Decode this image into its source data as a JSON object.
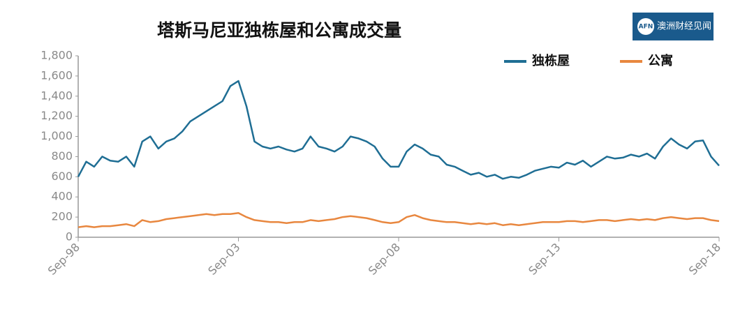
{
  "logo": {
    "mark": "AFN",
    "text": "澳洲财经见闻"
  },
  "chart_data": {
    "type": "line",
    "title": "塔斯马尼亚独栋屋和公寓成交量",
    "categories": [
      "Sep-98",
      null,
      null,
      null,
      null,
      null,
      null,
      null,
      null,
      null,
      null,
      null,
      null,
      null,
      null,
      null,
      null,
      null,
      null,
      null,
      "Sep-03",
      null,
      null,
      null,
      null,
      null,
      null,
      null,
      null,
      null,
      null,
      null,
      null,
      null,
      null,
      null,
      null,
      null,
      null,
      null,
      "Sep-08",
      null,
      null,
      null,
      null,
      null,
      null,
      null,
      null,
      null,
      null,
      null,
      null,
      null,
      null,
      null,
      null,
      null,
      null,
      null,
      "Sep-13",
      null,
      null,
      null,
      null,
      null,
      null,
      null,
      null,
      null,
      null,
      null,
      null,
      null,
      null,
      null,
      null,
      null,
      null,
      null,
      "Sep-18"
    ],
    "series": [
      {
        "name": "独栋屋",
        "color": "#1f6e94",
        "values": [
          600,
          750,
          700,
          800,
          760,
          750,
          800,
          700,
          950,
          1000,
          880,
          950,
          980,
          1050,
          1150,
          1200,
          1250,
          1300,
          1350,
          1500,
          1550,
          1300,
          950,
          900,
          880,
          900,
          870,
          850,
          880,
          1000,
          900,
          880,
          850,
          900,
          1000,
          980,
          950,
          900,
          780,
          700,
          700,
          850,
          920,
          880,
          820,
          800,
          720,
          700,
          660,
          620,
          640,
          600,
          620,
          580,
          600,
          590,
          620,
          660,
          680,
          700,
          690,
          740,
          720,
          760,
          700,
          750,
          800,
          780,
          790,
          820,
          800,
          830,
          780,
          900,
          980,
          920,
          880,
          950,
          960,
          800,
          710
        ]
      },
      {
        "name": "公寓",
        "color": "#e8873f",
        "values": [
          100,
          110,
          100,
          110,
          110,
          120,
          130,
          110,
          170,
          150,
          160,
          180,
          190,
          200,
          210,
          220,
          230,
          220,
          230,
          230,
          240,
          200,
          170,
          160,
          150,
          150,
          140,
          150,
          150,
          170,
          160,
          170,
          180,
          200,
          210,
          200,
          190,
          170,
          150,
          140,
          150,
          200,
          220,
          190,
          170,
          160,
          150,
          150,
          140,
          130,
          140,
          130,
          140,
          120,
          130,
          120,
          130,
          140,
          150,
          150,
          150,
          160,
          160,
          150,
          160,
          170,
          170,
          160,
          170,
          180,
          170,
          180,
          170,
          190,
          200,
          190,
          180,
          190,
          190,
          170,
          160
        ]
      }
    ],
    "ylim": [
      0,
      1800
    ],
    "yticks": [
      0,
      200,
      400,
      600,
      800,
      {
        "value": 1000,
        "label": "1,000"
      },
      {
        "value": 1200,
        "label": "1,200"
      },
      {
        "value": 1400,
        "label": "1,400"
      },
      {
        "value": 1600,
        "label": "1,600"
      },
      {
        "value": 1800,
        "label": "1,800"
      }
    ],
    "grid": false,
    "legend": "top-right"
  }
}
